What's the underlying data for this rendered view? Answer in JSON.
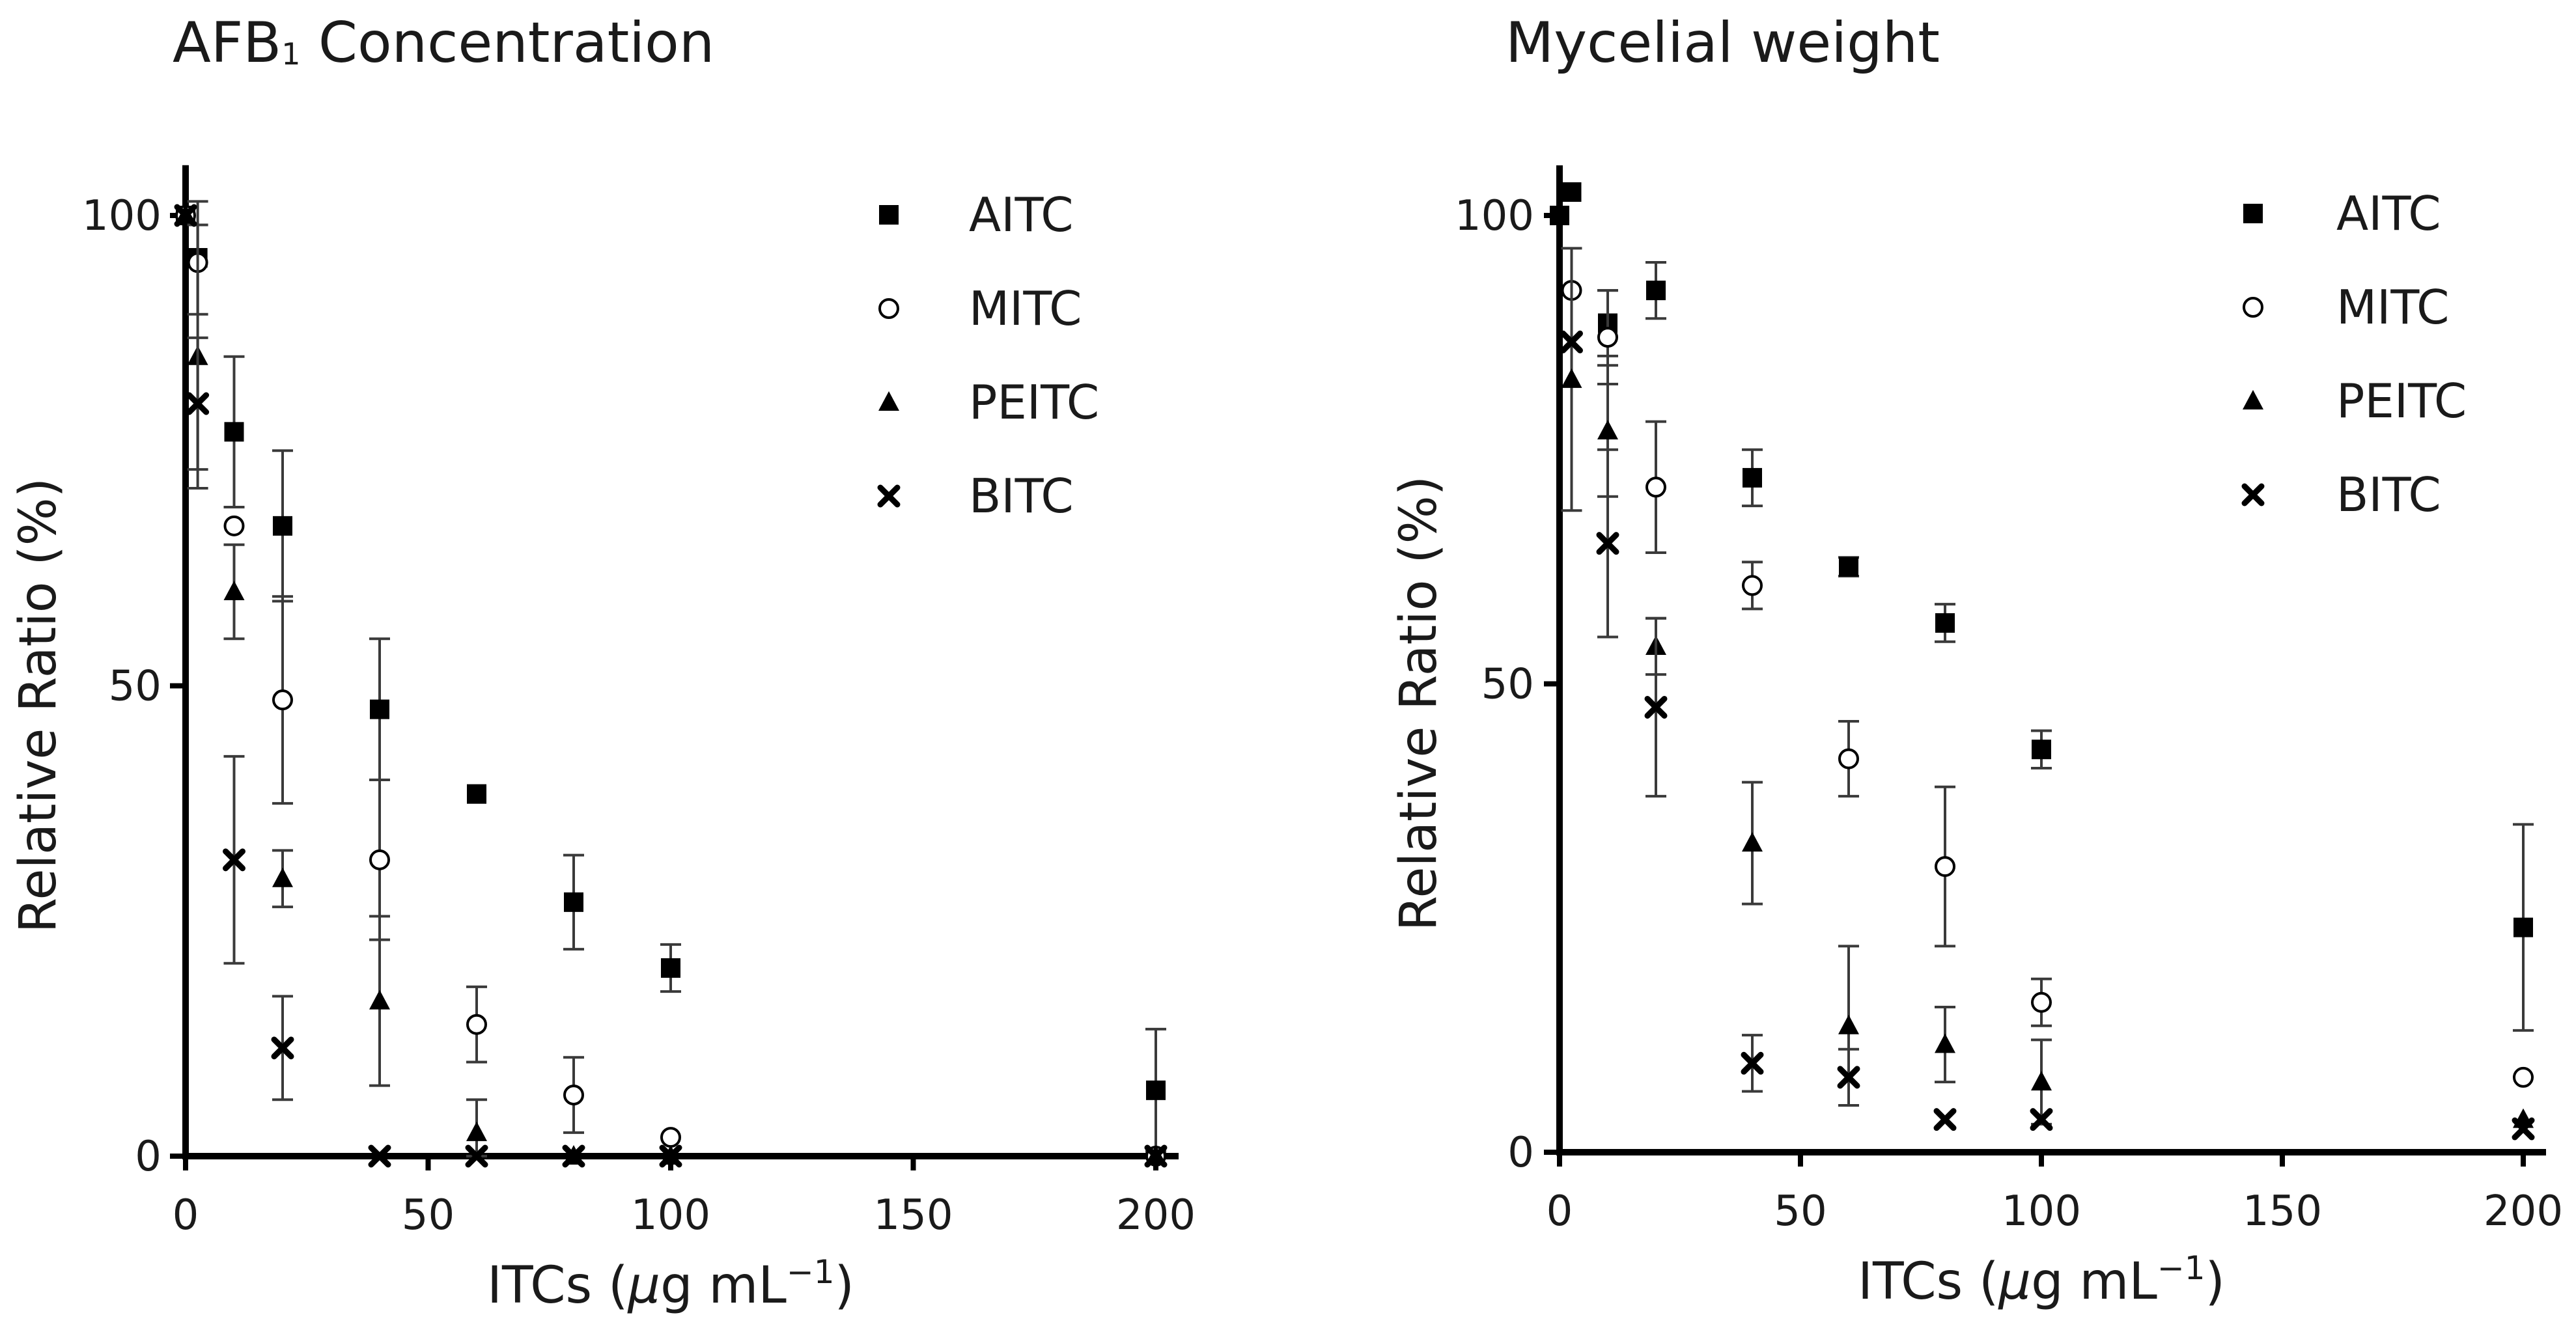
{
  "colors": {
    "marker": "#000000",
    "errorbar": "#3a3a3a",
    "text": "#1a1a1a",
    "background": "#ffffff"
  },
  "chart_data": [
    {
      "type": "scatter",
      "title_main": "AFB",
      "title_sub": "1",
      "title_rest": " Concentration",
      "xlabel": "ITCs (",
      "xlabel_mu": "μ",
      "xlabel_unit": "g mL",
      "xlabel_exp": "−1",
      "xlabel_close": ")",
      "ylabel": "Relative Ratio (%)",
      "xlim": [
        0,
        200
      ],
      "ylim": [
        0,
        105
      ],
      "xticks": [
        "0",
        "50",
        "100",
        "150",
        "200"
      ],
      "yticks": [
        "0",
        "50",
        "100"
      ],
      "legend_position": "top-right",
      "series": [
        {
          "name": "AITC",
          "marker": "square",
          "points": [
            [
              0,
              100,
              0
            ],
            [
              2.5,
              95.5,
              6
            ],
            [
              10,
              77,
              8
            ],
            [
              20,
              67,
              8
            ],
            [
              40,
              47.5,
              7.5
            ],
            [
              60,
              38.5,
              0
            ],
            [
              80,
              27,
              5
            ],
            [
              100,
              20,
              2.5
            ],
            [
              200,
              7,
              6.5
            ]
          ]
        },
        {
          "name": "MITC",
          "marker": "circle",
          "points": [
            [
              0,
              100,
              0
            ],
            [
              2.5,
              95,
              0
            ],
            [
              10,
              67,
              0
            ],
            [
              20,
              48.5,
              11
            ],
            [
              40,
              31.5,
              8.5
            ],
            [
              60,
              14,
              4
            ],
            [
              80,
              6.5,
              4
            ],
            [
              100,
              2,
              0
            ],
            [
              200,
              0,
              0
            ]
          ]
        },
        {
          "name": "PEITC",
          "marker": "triangle",
          "points": [
            [
              0,
              100,
              0
            ],
            [
              2.5,
              85,
              14
            ],
            [
              10,
              60,
              5
            ],
            [
              20,
              29.5,
              3
            ],
            [
              40,
              16.5,
              9
            ],
            [
              60,
              2.5,
              3.5
            ],
            [
              80,
              0,
              0
            ],
            [
              100,
              0,
              0
            ],
            [
              200,
              0,
              0
            ]
          ]
        },
        {
          "name": "BITC",
          "marker": "cross",
          "points": [
            [
              0,
              100,
              0
            ],
            [
              2.5,
              80,
              7
            ],
            [
              10,
              31.5,
              11
            ],
            [
              20,
              11.5,
              5.5
            ],
            [
              40,
              0,
              0
            ],
            [
              60,
              0,
              0
            ],
            [
              80,
              0,
              0
            ],
            [
              100,
              0,
              0
            ],
            [
              200,
              0,
              0
            ]
          ]
        }
      ]
    },
    {
      "type": "scatter",
      "title_main": "Mycelial weight",
      "title_sub": "",
      "title_rest": "",
      "xlabel": "ITCs (",
      "xlabel_mu": "μ",
      "xlabel_unit": "g mL",
      "xlabel_exp": "−1",
      "xlabel_close": ")",
      "ylabel": "Relative Ratio (%)",
      "xlim": [
        0,
        200
      ],
      "ylim": [
        0,
        105
      ],
      "xticks": [
        "0",
        "50",
        "100",
        "150",
        "200"
      ],
      "yticks": [
        "0",
        "50",
        "100"
      ],
      "legend_position": "top-right",
      "series": [
        {
          "name": "AITC",
          "marker": "square",
          "points": [
            [
              0,
              100,
              0
            ],
            [
              2.5,
              102.5,
              0
            ],
            [
              10,
              88.5,
              3.5
            ],
            [
              20,
              92,
              3
            ],
            [
              40,
              72,
              3
            ],
            [
              60,
              62.5,
              1
            ],
            [
              80,
              56.5,
              2
            ],
            [
              100,
              43,
              2
            ],
            [
              200,
              24,
              11
            ]
          ]
        },
        {
          "name": "MITC",
          "marker": "circle",
          "points": [
            [
              2.5,
              92,
              0
            ],
            [
              10,
              87,
              5
            ],
            [
              20,
              71,
              7
            ],
            [
              40,
              60.5,
              2.5
            ],
            [
              60,
              42,
              4
            ],
            [
              80,
              30.5,
              8.5
            ],
            [
              100,
              16,
              2.5
            ],
            [
              200,
              8,
              0
            ]
          ]
        },
        {
          "name": "PEITC",
          "marker": "triangle",
          "points": [
            [
              2.5,
              82.5,
              14
            ],
            [
              10,
              77,
              7
            ],
            [
              20,
              54,
              3
            ],
            [
              40,
              33,
              6.5
            ],
            [
              60,
              13.5,
              8.5
            ],
            [
              80,
              11.5,
              4
            ],
            [
              100,
              7.5,
              4.5
            ],
            [
              200,
              3.5,
              0
            ]
          ]
        },
        {
          "name": "BITC",
          "marker": "cross",
          "points": [
            [
              2.5,
              86.5,
              0
            ],
            [
              10,
              65,
              10
            ],
            [
              20,
              47.5,
              9.5
            ],
            [
              40,
              9.5,
              3
            ],
            [
              60,
              8,
              3
            ],
            [
              80,
              3.5,
              0
            ],
            [
              100,
              3.5,
              0
            ],
            [
              200,
              2.5,
              0
            ]
          ]
        }
      ]
    }
  ]
}
